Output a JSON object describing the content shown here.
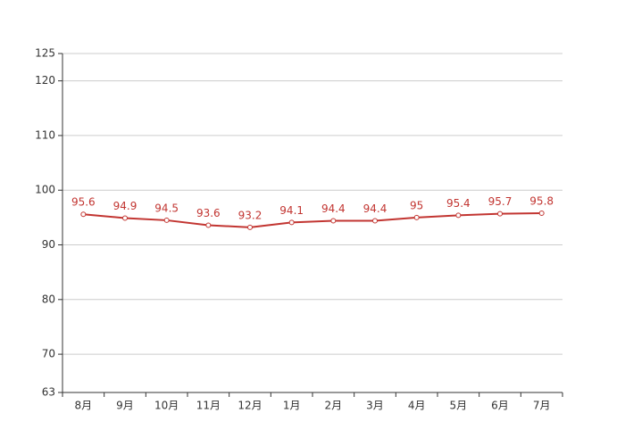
{
  "chart_data": {
    "type": "line",
    "categories": [
      "8月",
      "9月",
      "10月",
      "11月",
      "12月",
      "1月",
      "2月",
      "3月",
      "4月",
      "5月",
      "6月",
      "7月"
    ],
    "values": [
      95.6,
      94.9,
      94.5,
      93.6,
      93.2,
      94.1,
      94.4,
      94.4,
      95,
      95.4,
      95.7,
      95.8
    ],
    "color": "#c23531",
    "ylim": [
      63,
      125
    ],
    "yticks": [
      63,
      70,
      80,
      90,
      100,
      110,
      120,
      125
    ],
    "grid": true
  }
}
